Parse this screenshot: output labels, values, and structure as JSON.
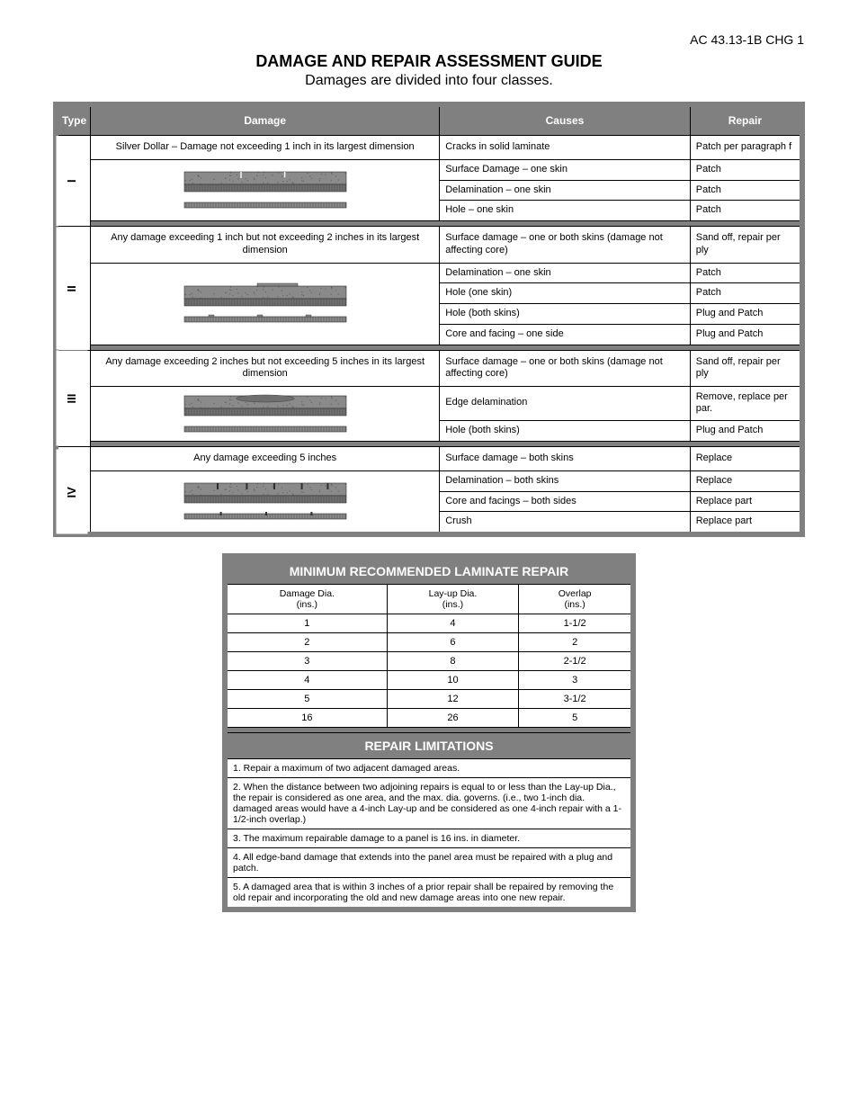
{
  "page_number": "AC 43.13-1B CHG 1",
  "heading": "DAMAGE AND REPAIR ASSESSMENT GUIDE",
  "subheading": "Damages are divided into four classes.",
  "table1": {
    "header": [
      "Type",
      "Damage",
      "Causes",
      "Repair"
    ],
    "groups": [
      {
        "type": "I",
        "type_header": "Silver Dollar – Damage not exceeding 1 inch in its largest dimension",
        "rows": [
          [
            "Cracks in solid laminate",
            "Patch per paragraph f"
          ],
          [
            "Surface Damage – one skin",
            "Patch"
          ],
          [
            "Delamination – one skin",
            "Patch"
          ],
          [
            "Hole – one skin",
            "Patch"
          ]
        ],
        "image": "scratch"
      },
      {
        "type": "II",
        "type_header": "Any damage exceeding 1 inch but not exceeding 2 inches in its largest dimension",
        "rows": [
          [
            "Surface damage – one or both skins (damage not affecting core)",
            "Sand off, repair per ply"
          ],
          [
            "Delamination – one skin",
            "Patch"
          ],
          [
            "Hole (one skin)",
            "Patch"
          ],
          [
            "Hole (both skins)",
            "Plug and Patch"
          ],
          [
            "Core and facing – one side",
            "Plug and Patch"
          ]
        ],
        "image": "step"
      },
      {
        "type": "III",
        "type_header": "Any damage exceeding 2 inches but not exceeding 5 inches in its largest dimension",
        "rows": [
          [
            "Surface damage – one or both skins (damage not affecting core)",
            "Sand off, repair per ply"
          ],
          [
            "Edge delamination",
            "Remove, replace per par."
          ],
          [
            "Hole (both skins)",
            "Plug and Patch"
          ]
        ],
        "image": "dent"
      },
      {
        "type": "IV",
        "type_header": "Any damage exceeding 5 inches",
        "rows": [
          [
            "Surface damage – both skins",
            "Replace"
          ],
          [
            "Delamination – both skins",
            "Replace"
          ],
          [
            "Core and facings – both sides",
            "Replace part"
          ],
          [
            "Crush",
            "Replace part"
          ]
        ],
        "image": "punctures"
      }
    ]
  },
  "table2": {
    "title": "MINIMUM RECOMMENDED LAMINATE REPAIR",
    "columns": [
      "Damage Dia.\n(ins.)",
      "Lay-up Dia.\n(ins.)",
      "Overlap\n(ins.)"
    ],
    "rows": [
      [
        "1",
        "4",
        "1-1/2"
      ],
      [
        "2",
        "6",
        "2"
      ],
      [
        "3",
        "8",
        "2-1/2"
      ],
      [
        "4",
        "10",
        "3"
      ],
      [
        "5",
        "12",
        "3-1/2"
      ],
      [
        "16",
        "26",
        "5"
      ]
    ],
    "notes_title": "REPAIR LIMITATIONS",
    "notes": [
      "Repair a maximum of two adjacent damaged areas.",
      "When the distance between two adjoining repairs is equal to or less than the Lay-up Dia., the repair is considered as one area, and the max. dia. governs. (i.e., two 1-inch dia. damaged areas would have a 4-inch Lay-up and be considered as one 4-inch repair with a 1-1/2-inch overlap.)",
      "The maximum repairable damage to a panel is 16 ins. in diameter.",
      "All edge-band damage that extends into the panel area must be repaired with a plug and patch.",
      "A damaged area that is within 3 inches of a prior repair shall be repaired by removing the old repair and incorporating the old and new damage areas into one new repair."
    ]
  },
  "colors": {
    "frame": "#808080",
    "hdr_bg": "#808080",
    "hdr_text": "#ffffff",
    "line": "#000000",
    "bg": "#ffffff"
  }
}
